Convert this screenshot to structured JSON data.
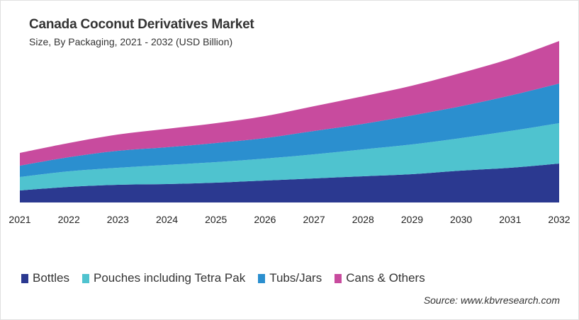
{
  "chart_data": {
    "type": "area",
    "stacked": true,
    "title": "Canada Coconut Derivatives Market",
    "subtitle": "Size, By Packaging, 2021 - 2032 (USD Billion)",
    "categories": [
      "2021",
      "2022",
      "2023",
      "2024",
      "2025",
      "2026",
      "2027",
      "2028",
      "2029",
      "2030",
      "2031",
      "2032"
    ],
    "series": [
      {
        "name": "Bottles",
        "color": "#2b3990",
        "values": [
          0.17,
          0.22,
          0.25,
          0.26,
          0.28,
          0.31,
          0.34,
          0.37,
          0.4,
          0.45,
          0.49,
          0.55
        ]
      },
      {
        "name": "Pouches including Tetra Pak",
        "color": "#4fc3cf",
        "values": [
          0.19,
          0.22,
          0.24,
          0.27,
          0.29,
          0.31,
          0.34,
          0.38,
          0.42,
          0.46,
          0.52,
          0.57
        ]
      },
      {
        "name": "Tubs/Jars",
        "color": "#2b8fcf",
        "values": [
          0.16,
          0.2,
          0.24,
          0.25,
          0.27,
          0.29,
          0.33,
          0.36,
          0.41,
          0.45,
          0.5,
          0.56
        ]
      },
      {
        "name": "Cans & Others",
        "color": "#c84b9e",
        "values": [
          0.18,
          0.2,
          0.23,
          0.26,
          0.28,
          0.31,
          0.35,
          0.39,
          0.42,
          0.47,
          0.52,
          0.6
        ]
      }
    ],
    "ylim": [
      0,
      2.3
    ],
    "y_axis_shown": false,
    "grid": false,
    "legend_position": "bottom-left",
    "source": "Source: www.kbvresearch.com"
  }
}
